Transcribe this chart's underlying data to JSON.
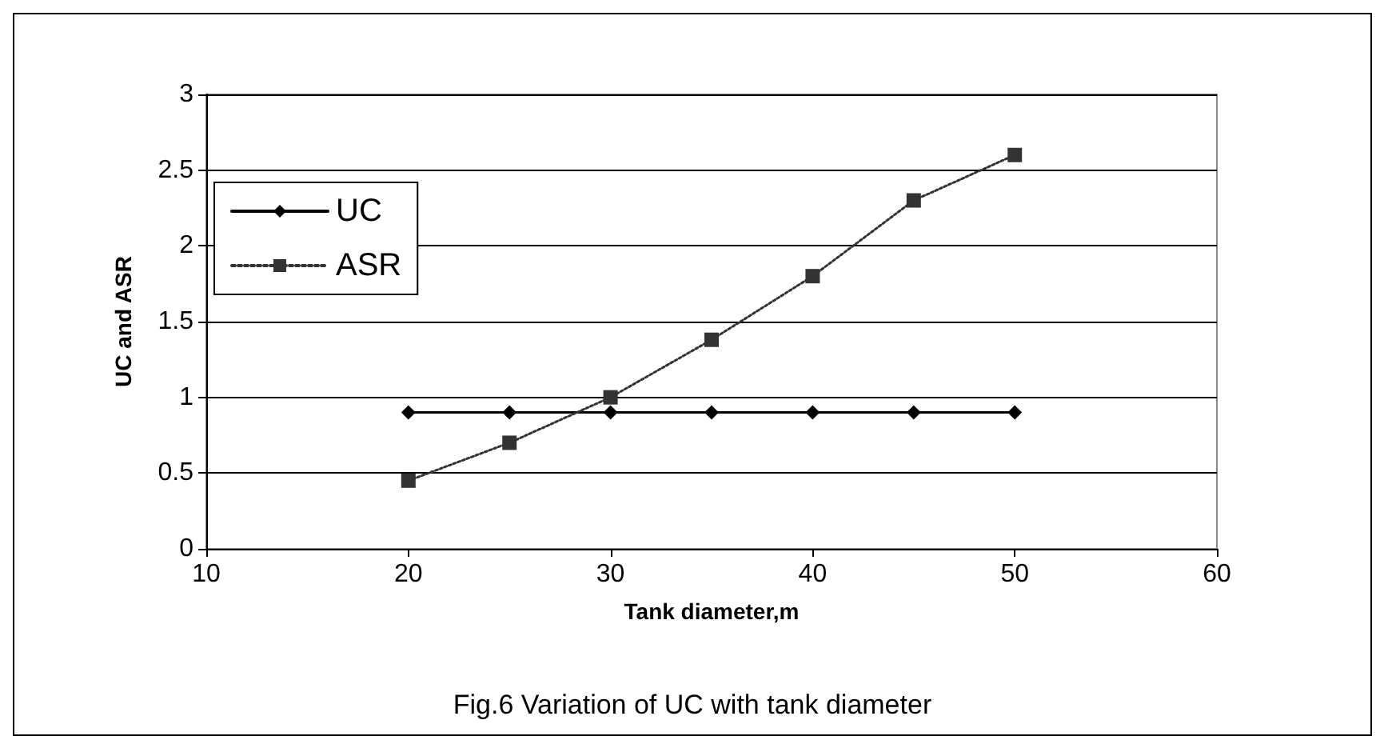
{
  "chart_data": {
    "type": "line",
    "xlabel": "Tank diameter,m",
    "ylabel": "UC and ASR",
    "annotations": [
      "Fig.6 Variation of UC with tank diameter"
    ],
    "x": [
      20,
      25,
      30,
      35,
      40,
      45,
      50
    ],
    "series": [
      {
        "name": "UC",
        "color": "#000000",
        "values": [
          0.9,
          0.9,
          0.9,
          0.9,
          0.9,
          0.9,
          0.9
        ],
        "marker": "diamond",
        "line_style": "solid"
      },
      {
        "name": "ASR",
        "color": "#333333",
        "values": [
          0.45,
          0.7,
          1.0,
          1.38,
          1.8,
          2.3,
          2.6
        ],
        "marker": "square",
        "line_style": "dotted"
      }
    ],
    "xlim": [
      10,
      60
    ],
    "xticks": [
      10,
      20,
      30,
      40,
      50,
      60
    ],
    "ylim": [
      0,
      3
    ],
    "yticks": [
      0,
      0.5,
      1,
      1.5,
      2,
      2.5,
      3
    ],
    "grid": "y",
    "legend": "top left"
  }
}
